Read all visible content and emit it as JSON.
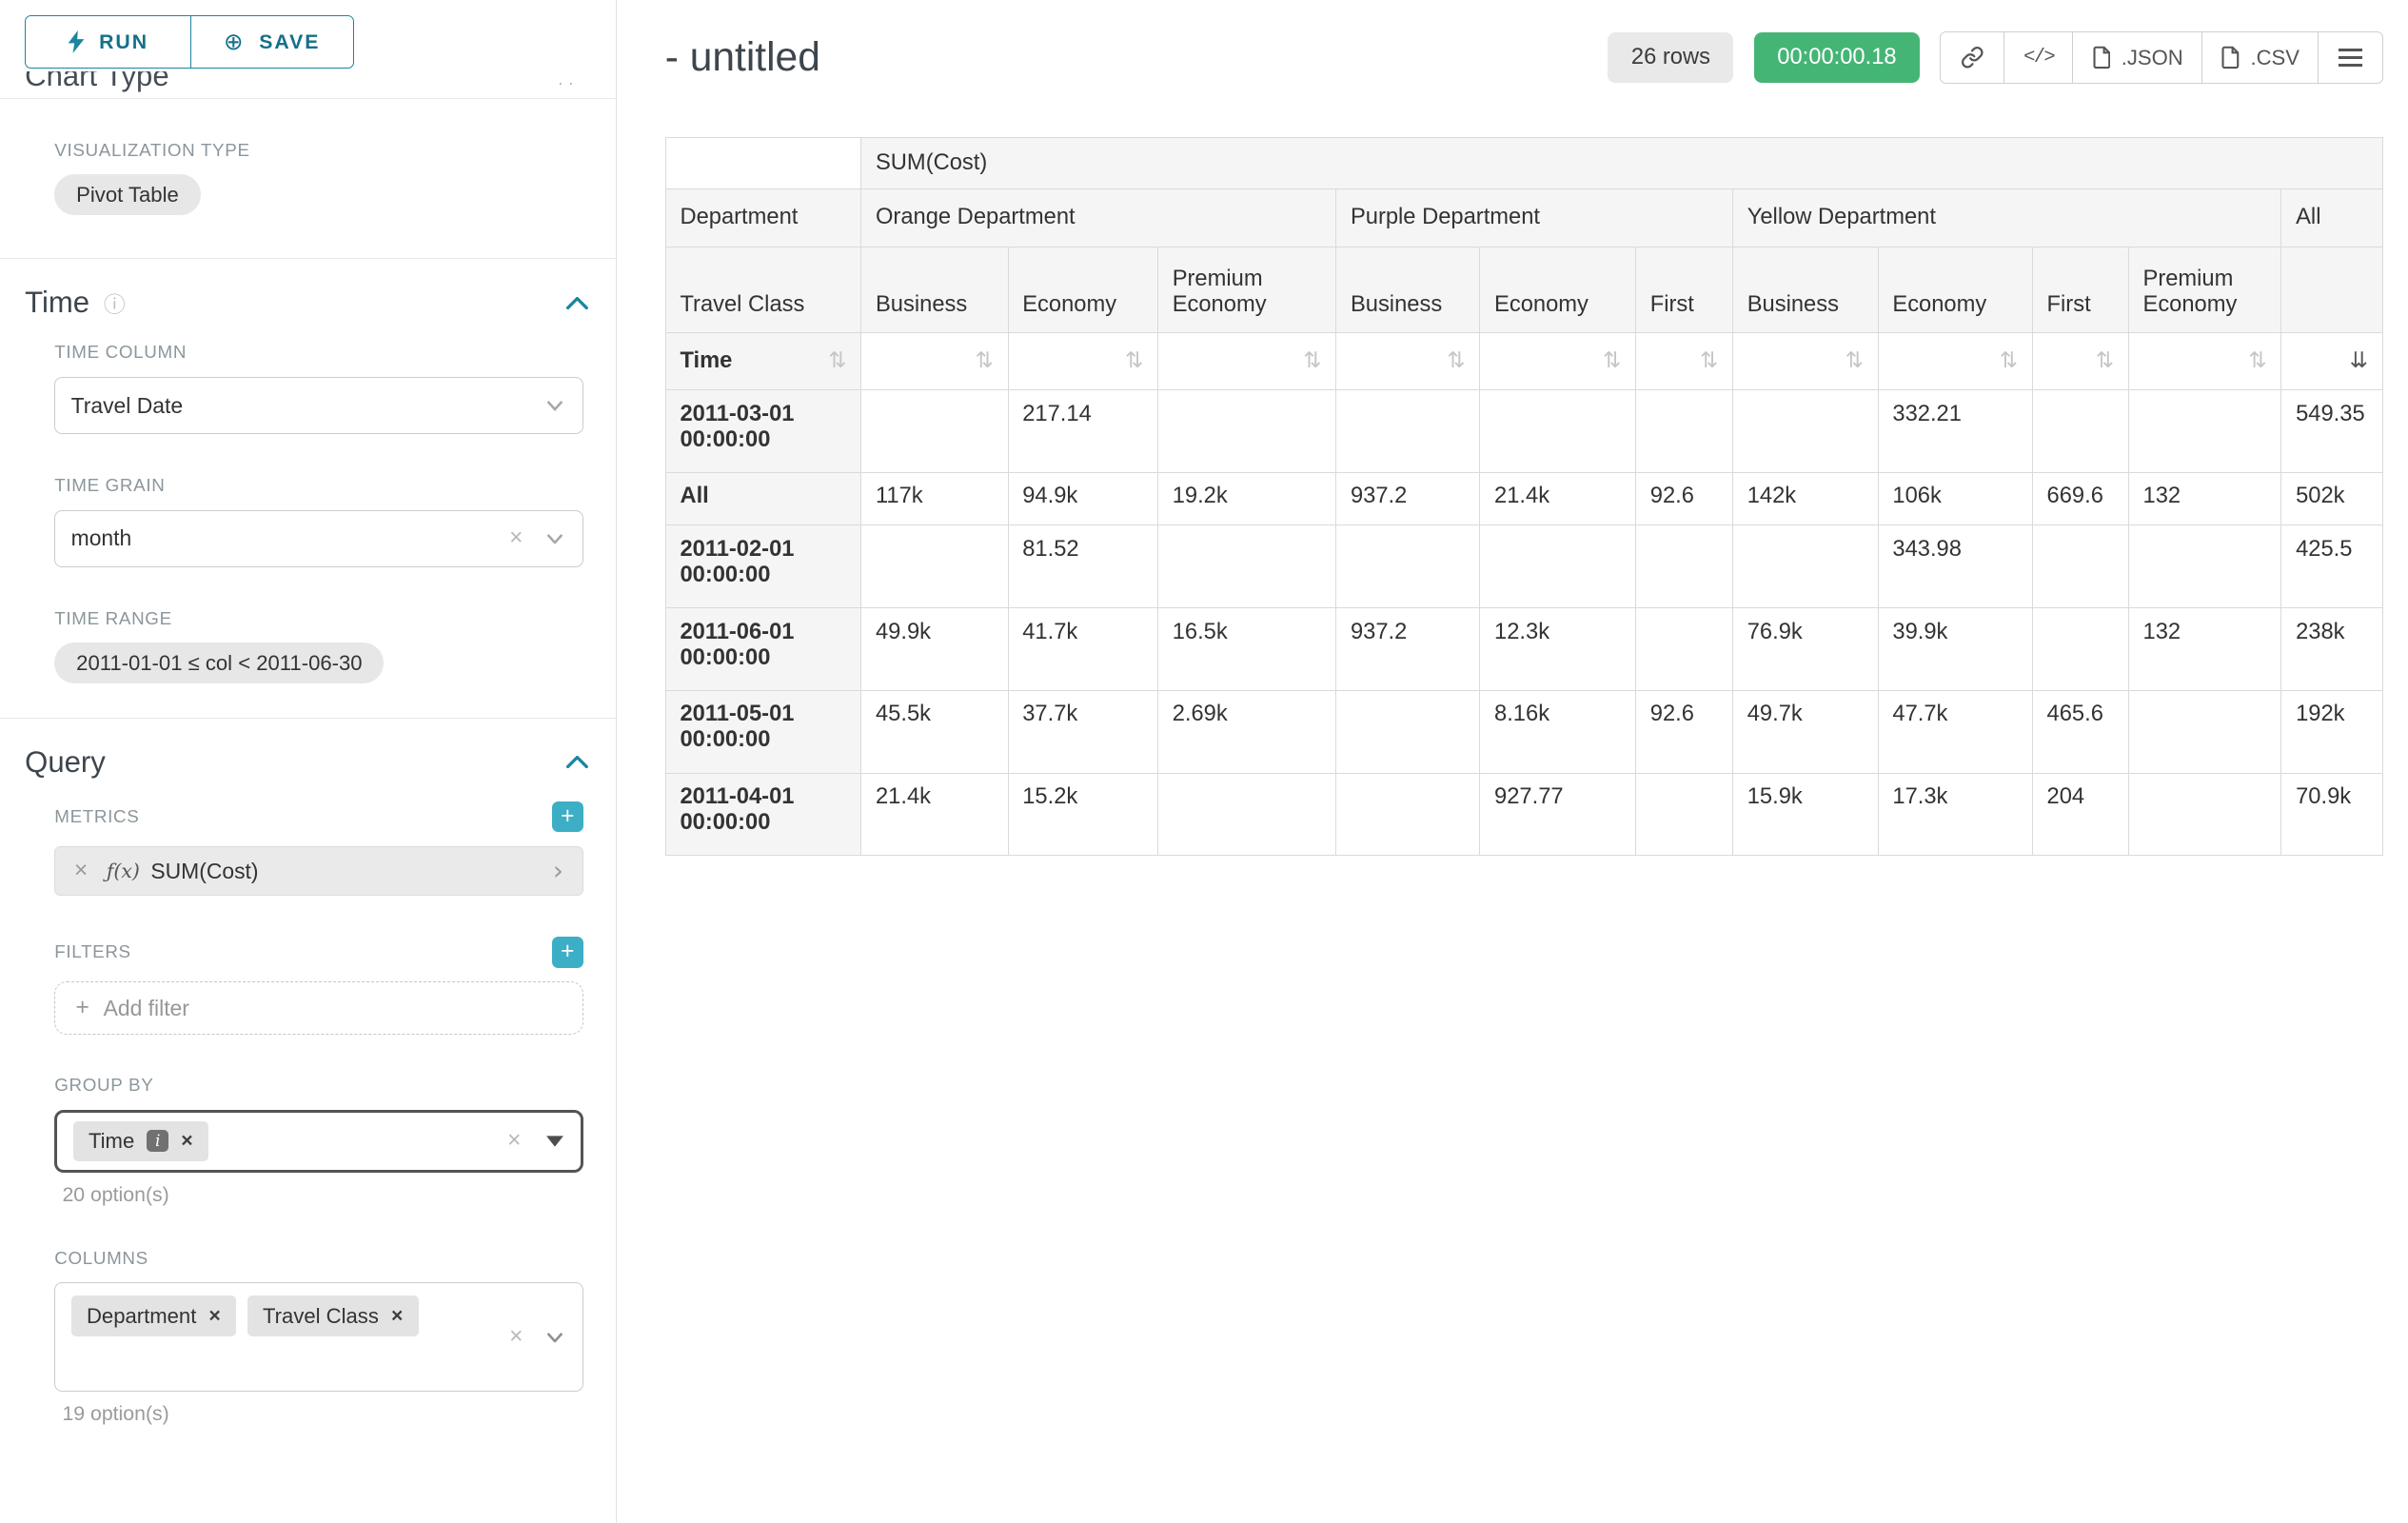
{
  "colors": {
    "accent_teal": "#1a85a0",
    "add_button_teal": "#3caec6",
    "timer_green": "#45b575",
    "header_gray": "#f5f5f5"
  },
  "topbar": {
    "run_label": "RUN",
    "save_label": "SAVE"
  },
  "sidebar": {
    "clipped_section_title": "Chart Type",
    "visualization": {
      "label": "VISUALIZATION TYPE",
      "value": "Pivot Table"
    },
    "time_section": {
      "title": "Time",
      "time_column": {
        "label": "TIME COLUMN",
        "value": "Travel Date"
      },
      "time_grain": {
        "label": "TIME GRAIN",
        "value": "month"
      },
      "time_range": {
        "label": "TIME RANGE",
        "value": "2011-01-01 ≤ col < 2011-06-30"
      }
    },
    "query_section": {
      "title": "Query",
      "metrics": {
        "label": "METRICS",
        "items": [
          {
            "prefix": "ƒ(x)",
            "label": "SUM(Cost)"
          }
        ]
      },
      "filters": {
        "label": "FILTERS",
        "placeholder": "Add filter"
      },
      "group_by": {
        "label": "GROUP BY",
        "values": [
          "Time"
        ],
        "options_hint": "20 option(s)"
      },
      "columns": {
        "label": "COLUMNS",
        "values": [
          "Department",
          "Travel Class"
        ],
        "options_hint": "19 option(s)"
      }
    }
  },
  "main": {
    "title": "- untitled",
    "row_count": "26 rows",
    "timer": "00:00:00.18",
    "buttons": {
      "json": ".JSON",
      "csv": ".CSV"
    }
  },
  "pivot": {
    "metric_header": "SUM(Cost)",
    "col_dimension": "Department",
    "row_dimension_label": "Travel Class",
    "row_axis_label": "Time",
    "all_label": "All",
    "groups": [
      {
        "label": "Orange Department",
        "columns": [
          "Business",
          "Economy",
          "Premium Economy"
        ]
      },
      {
        "label": "Purple Department",
        "columns": [
          "Business",
          "Economy",
          "First"
        ]
      },
      {
        "label": "Yellow Department",
        "columns": [
          "Business",
          "Economy",
          "First",
          "Premium Economy"
        ]
      }
    ],
    "sort_active_index": 10,
    "rows": [
      {
        "label": "2011-03-01 00:00:00",
        "values": [
          "",
          "217.14",
          "",
          "",
          "",
          "",
          "",
          "332.21",
          "",
          "",
          "549.35"
        ]
      },
      {
        "label": "All",
        "values": [
          "117k",
          "94.9k",
          "19.2k",
          "937.2",
          "21.4k",
          "92.6",
          "142k",
          "106k",
          "669.6",
          "132",
          "502k"
        ]
      },
      {
        "label": "2011-02-01 00:00:00",
        "values": [
          "",
          "81.52",
          "",
          "",
          "",
          "",
          "",
          "343.98",
          "",
          "",
          "425.5"
        ]
      },
      {
        "label": "2011-06-01 00:00:00",
        "values": [
          "49.9k",
          "41.7k",
          "16.5k",
          "937.2",
          "12.3k",
          "",
          "76.9k",
          "39.9k",
          "",
          "132",
          "238k"
        ]
      },
      {
        "label": "2011-05-01 00:00:00",
        "values": [
          "45.5k",
          "37.7k",
          "2.69k",
          "",
          "8.16k",
          "92.6",
          "49.7k",
          "47.7k",
          "465.6",
          "",
          "192k"
        ]
      },
      {
        "label": "2011-04-01 00:00:00",
        "values": [
          "21.4k",
          "15.2k",
          "",
          "",
          "927.77",
          "",
          "15.9k",
          "17.3k",
          "204",
          "",
          "70.9k"
        ]
      }
    ]
  }
}
